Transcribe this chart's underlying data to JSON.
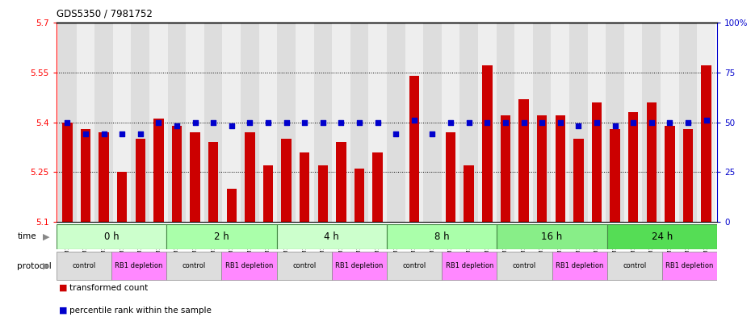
{
  "title": "GDS5350 / 7981752",
  "samples": [
    "GSM1220792",
    "GSM1220798",
    "GSM1220816",
    "GSM1220804",
    "GSM1220810",
    "GSM1220822",
    "GSM1220793",
    "GSM1220799",
    "GSM1220817",
    "GSM1220805",
    "GSM1220811",
    "GSM1220823",
    "GSM1220794",
    "GSM1220800",
    "GSM1220818",
    "GSM1220806",
    "GSM1220812",
    "GSM1220824",
    "GSM1220795",
    "GSM1220801",
    "GSM1220819",
    "GSM1220807",
    "GSM1220813",
    "GSM1220825",
    "GSM1220796",
    "GSM1220802",
    "GSM1220820",
    "GSM1220808",
    "GSM1220814",
    "GSM1220826",
    "GSM1220797",
    "GSM1220803",
    "GSM1220821",
    "GSM1220809",
    "GSM1220815",
    "GSM1220827"
  ],
  "bar_values": [
    5.4,
    5.38,
    5.37,
    5.25,
    5.35,
    5.41,
    5.39,
    5.37,
    5.34,
    5.2,
    5.37,
    5.27,
    5.35,
    5.31,
    5.27,
    5.34,
    5.26,
    5.31,
    5.1,
    5.54,
    5.1,
    5.37,
    5.27,
    5.57,
    5.42,
    5.47,
    5.42,
    5.42,
    5.35,
    5.46,
    5.38,
    5.43,
    5.46,
    5.39,
    5.38,
    5.57
  ],
  "percentile_values": [
    50,
    44,
    44,
    44,
    44,
    50,
    48,
    50,
    50,
    48,
    50,
    50,
    50,
    50,
    50,
    50,
    50,
    50,
    44,
    51,
    44,
    50,
    50,
    50,
    50,
    50,
    50,
    50,
    48,
    50,
    48,
    50,
    50,
    50,
    50,
    51
  ],
  "ylim_left": [
    5.1,
    5.7
  ],
  "ylim_right": [
    0,
    100
  ],
  "yticks_left": [
    5.1,
    5.25,
    5.4,
    5.55,
    5.7
  ],
  "yticks_right": [
    0,
    25,
    50,
    75,
    100
  ],
  "time_groups": [
    {
      "label": "0 h",
      "start": 0,
      "end": 6,
      "color": "#ccffcc"
    },
    {
      "label": "2 h",
      "start": 6,
      "end": 12,
      "color": "#aaffaa"
    },
    {
      "label": "4 h",
      "start": 12,
      "end": 18,
      "color": "#ccffcc"
    },
    {
      "label": "8 h",
      "start": 18,
      "end": 24,
      "color": "#aaffaa"
    },
    {
      "label": "16 h",
      "start": 24,
      "end": 30,
      "color": "#88ee88"
    },
    {
      "label": "24 h",
      "start": 30,
      "end": 36,
      "color": "#55dd55"
    }
  ],
  "protocol_groups": [
    {
      "label": "control",
      "start": 0,
      "end": 3,
      "color": "#dddddd"
    },
    {
      "label": "RB1 depletion",
      "start": 3,
      "end": 6,
      "color": "#ff88ff"
    },
    {
      "label": "control",
      "start": 6,
      "end": 9,
      "color": "#dddddd"
    },
    {
      "label": "RB1 depletion",
      "start": 9,
      "end": 12,
      "color": "#ff88ff"
    },
    {
      "label": "control",
      "start": 12,
      "end": 15,
      "color": "#dddddd"
    },
    {
      "label": "RB1 depletion",
      "start": 15,
      "end": 18,
      "color": "#ff88ff"
    },
    {
      "label": "control",
      "start": 18,
      "end": 21,
      "color": "#dddddd"
    },
    {
      "label": "RB1 depletion",
      "start": 21,
      "end": 24,
      "color": "#ff88ff"
    },
    {
      "label": "control",
      "start": 24,
      "end": 27,
      "color": "#dddddd"
    },
    {
      "label": "RB1 depletion",
      "start": 27,
      "end": 30,
      "color": "#ff88ff"
    },
    {
      "label": "control",
      "start": 30,
      "end": 33,
      "color": "#dddddd"
    },
    {
      "label": "RB1 depletion",
      "start": 33,
      "end": 36,
      "color": "#ff88ff"
    }
  ],
  "bar_color": "#cc0000",
  "dot_color": "#0000cc",
  "col_bg_even": "#dddddd",
  "col_bg_odd": "#eeeeee",
  "plot_bg": "#ffffff"
}
